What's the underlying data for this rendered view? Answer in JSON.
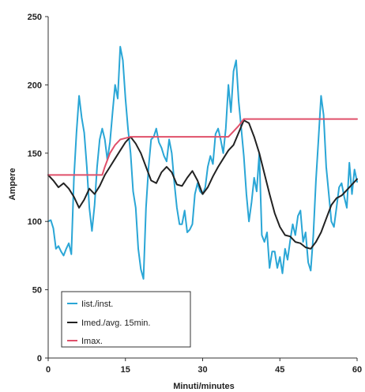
{
  "chart_data": {
    "type": "line",
    "title": "",
    "xlabel": "Minuti/minutes",
    "ylabel": "Ampere",
    "xlim": [
      0,
      60
    ],
    "ylim": [
      0,
      250
    ],
    "x_ticks": [
      0,
      15,
      30,
      45,
      60
    ],
    "y_ticks": [
      0,
      50,
      100,
      150,
      200,
      250
    ],
    "grid": false,
    "legend_position": "bottom-left",
    "series": [
      {
        "name": "Iist./inst.",
        "color": "#2aa6d6",
        "points": [
          [
            0,
            100
          ],
          [
            0.5,
            101
          ],
          [
            1,
            95
          ],
          [
            1.5,
            80
          ],
          [
            2,
            82
          ],
          [
            2.5,
            78
          ],
          [
            3,
            75
          ],
          [
            3.5,
            80
          ],
          [
            4,
            84
          ],
          [
            4.5,
            76
          ],
          [
            5,
            132
          ],
          [
            5.5,
            165
          ],
          [
            6,
            192
          ],
          [
            6.5,
            176
          ],
          [
            7,
            165
          ],
          [
            7.5,
            140
          ],
          [
            8,
            110
          ],
          [
            8.5,
            93
          ],
          [
            9,
            112
          ],
          [
            9.5,
            140
          ],
          [
            10,
            160
          ],
          [
            10.5,
            168
          ],
          [
            11,
            160
          ],
          [
            11.5,
            145
          ],
          [
            12,
            158
          ],
          [
            12.5,
            180
          ],
          [
            13,
            200
          ],
          [
            13.5,
            190
          ],
          [
            14,
            228
          ],
          [
            14.5,
            218
          ],
          [
            15,
            190
          ],
          [
            15.5,
            168
          ],
          [
            16,
            150
          ],
          [
            16.5,
            122
          ],
          [
            17,
            110
          ],
          [
            17.5,
            80
          ],
          [
            18,
            65
          ],
          [
            18.5,
            58
          ],
          [
            19,
            110
          ],
          [
            19.5,
            140
          ],
          [
            20,
            160
          ],
          [
            20.5,
            162
          ],
          [
            21,
            168
          ],
          [
            21.5,
            158
          ],
          [
            22,
            154
          ],
          [
            22.5,
            148
          ],
          [
            23,
            144
          ],
          [
            23.5,
            160
          ],
          [
            24,
            150
          ],
          [
            24.5,
            128
          ],
          [
            25,
            110
          ],
          [
            25.5,
            98
          ],
          [
            26,
            98
          ],
          [
            26.5,
            108
          ],
          [
            27,
            92
          ],
          [
            27.5,
            94
          ],
          [
            28,
            98
          ],
          [
            28.5,
            120
          ],
          [
            29,
            128
          ],
          [
            29.5,
            122
          ],
          [
            30,
            120
          ],
          [
            30.5,
            125
          ],
          [
            31,
            140
          ],
          [
            31.5,
            148
          ],
          [
            32,
            142
          ],
          [
            32.5,
            164
          ],
          [
            33,
            168
          ],
          [
            33.5,
            160
          ],
          [
            34,
            150
          ],
          [
            34.5,
            168
          ],
          [
            35,
            200
          ],
          [
            35.5,
            180
          ],
          [
            36,
            210
          ],
          [
            36.5,
            218
          ],
          [
            37,
            188
          ],
          [
            37.5,
            168
          ],
          [
            38,
            148
          ],
          [
            38.5,
            120
          ],
          [
            39,
            100
          ],
          [
            39.5,
            114
          ],
          [
            40,
            132
          ],
          [
            40.5,
            122
          ],
          [
            41,
            150
          ],
          [
            41.5,
            90
          ],
          [
            42,
            85
          ],
          [
            42.5,
            92
          ],
          [
            43,
            66
          ],
          [
            43.5,
            78
          ],
          [
            44,
            78
          ],
          [
            44.5,
            66
          ],
          [
            45,
            74
          ],
          [
            45.5,
            62
          ],
          [
            46,
            80
          ],
          [
            46.5,
            72
          ],
          [
            47,
            86
          ],
          [
            47.5,
            98
          ],
          [
            48,
            90
          ],
          [
            48.5,
            104
          ],
          [
            49,
            108
          ],
          [
            49.5,
            85
          ],
          [
            50,
            92
          ],
          [
            50.5,
            70
          ],
          [
            51,
            64
          ],
          [
            51.5,
            90
          ],
          [
            52,
            130
          ],
          [
            52.5,
            160
          ],
          [
            53,
            192
          ],
          [
            53.5,
            178
          ],
          [
            54,
            140
          ],
          [
            54.5,
            120
          ],
          [
            55,
            100
          ],
          [
            55.5,
            96
          ],
          [
            56,
            110
          ],
          [
            56.5,
            125
          ],
          [
            57,
            128
          ],
          [
            57.5,
            118
          ],
          [
            58,
            110
          ],
          [
            58.5,
            143
          ],
          [
            59,
            120
          ],
          [
            59.5,
            138
          ],
          [
            60,
            129
          ]
        ]
      },
      {
        "name": "Imed./avg. 15min.",
        "color": "#222222",
        "points": [
          [
            0,
            134
          ],
          [
            1,
            130
          ],
          [
            2,
            125
          ],
          [
            3,
            128
          ],
          [
            4,
            124
          ],
          [
            5,
            118
          ],
          [
            6,
            110
          ],
          [
            7,
            116
          ],
          [
            8,
            124
          ],
          [
            9,
            120
          ],
          [
            10,
            126
          ],
          [
            11,
            134
          ],
          [
            12,
            140
          ],
          [
            13,
            146
          ],
          [
            14,
            152
          ],
          [
            15,
            158
          ],
          [
            16,
            162
          ],
          [
            17,
            157
          ],
          [
            18,
            150
          ],
          [
            19,
            140
          ],
          [
            20,
            130
          ],
          [
            21,
            128
          ],
          [
            22,
            136
          ],
          [
            23,
            140
          ],
          [
            24,
            136
          ],
          [
            25,
            127
          ],
          [
            26,
            126
          ],
          [
            27,
            132
          ],
          [
            28,
            137
          ],
          [
            29,
            130
          ],
          [
            30,
            120
          ],
          [
            31,
            125
          ],
          [
            32,
            133
          ],
          [
            33,
            140
          ],
          [
            34,
            146
          ],
          [
            35,
            152
          ],
          [
            36,
            156
          ],
          [
            37,
            165
          ],
          [
            38,
            174
          ],
          [
            39,
            172
          ],
          [
            40,
            162
          ],
          [
            41,
            150
          ],
          [
            42,
            135
          ],
          [
            43,
            120
          ],
          [
            44,
            106
          ],
          [
            45,
            96
          ],
          [
            46,
            90
          ],
          [
            47,
            89
          ],
          [
            48,
            85
          ],
          [
            49,
            84
          ],
          [
            50,
            81
          ],
          [
            51,
            80
          ],
          [
            52,
            85
          ],
          [
            53,
            92
          ],
          [
            54,
            102
          ],
          [
            55,
            112
          ],
          [
            56,
            117
          ],
          [
            57,
            119
          ],
          [
            58,
            123
          ],
          [
            59,
            127
          ],
          [
            60,
            131
          ]
        ]
      },
      {
        "name": "Imax.",
        "color": "#e0506a",
        "points": [
          [
            0,
            134
          ],
          [
            10.5,
            134
          ],
          [
            11,
            140
          ],
          [
            12,
            150
          ],
          [
            13,
            156
          ],
          [
            14,
            160
          ],
          [
            15,
            161
          ],
          [
            16,
            162
          ],
          [
            35,
            162
          ],
          [
            36,
            166
          ],
          [
            37,
            170
          ],
          [
            38,
            175
          ],
          [
            60,
            175
          ]
        ]
      }
    ]
  }
}
